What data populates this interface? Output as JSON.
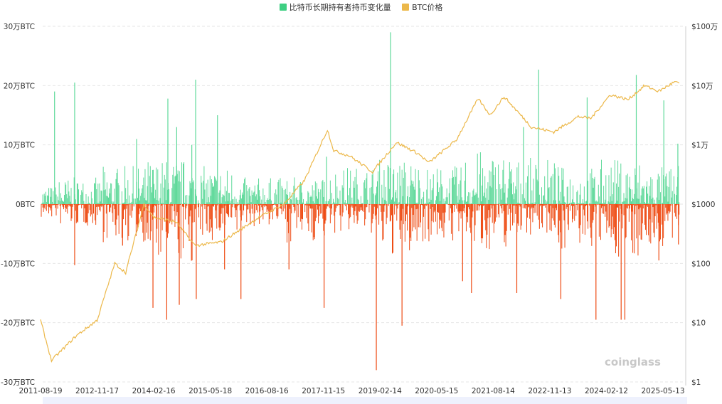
{
  "chart_data": {
    "type": "bar+line",
    "legend": [
      {
        "name": "比特币长期持有者持币变化量",
        "color": "#3ecf82"
      },
      {
        "name": "BTC价格",
        "color": "#ecb84a"
      }
    ],
    "legend_position": "top",
    "left_axis": {
      "ticks": [
        "30万BTC",
        "20万BTC",
        "10万BTC",
        "0BTC",
        "-10万BTC",
        "-20万BTC",
        "-30万BTC"
      ],
      "range_wan_btc": [
        -30,
        30
      ]
    },
    "right_axis": {
      "scale": "log",
      "ticks": [
        "$100万",
        "$10万",
        "$1万",
        "$1000",
        "$100",
        "$10",
        "$1"
      ],
      "range_usd": [
        1,
        1000000
      ]
    },
    "x_ticks": [
      "2011-08-19",
      "2012-11-17",
      "2014-02-16",
      "2015-05-18",
      "2016-08-16",
      "2017-11-15",
      "2019-02-14",
      "2020-05-15",
      "2021-08-14",
      "2022-11-13",
      "2024-02-12",
      "2025-05-13"
    ],
    "grid": true,
    "colors": {
      "positive": "#5fd99a",
      "negative": "#ee4a12",
      "price": "#ecb84a"
    },
    "units": "万BTC",
    "positive_spikes": [
      [
        "2011-12-10",
        19
      ],
      [
        "2012-05-20",
        20.5
      ],
      [
        "2013-10-01",
        11
      ],
      [
        "2014-06-10",
        17.8
      ],
      [
        "2014-08-20",
        13
      ],
      [
        "2014-12-20",
        10
      ],
      [
        "2015-01-20",
        21
      ],
      [
        "2015-07-15",
        15
      ],
      [
        "2017-12-10",
        8
      ],
      [
        "2019-05-10",
        29
      ],
      [
        "2022-04-15",
        13
      ],
      [
        "2022-08-15",
        22.7
      ],
      [
        "2023-09-10",
        18
      ],
      [
        "2024-10-10",
        21.8
      ],
      [
        "2025-05-20",
        17.5
      ],
      [
        "2025-09-10",
        10.2
      ]
    ],
    "negative_spikes": [
      [
        "2012-05-20",
        -10.3
      ],
      [
        "2013-06-10",
        -7
      ],
      [
        "2014-02-10",
        -17.5
      ],
      [
        "2014-06-01",
        -19.5
      ],
      [
        "2014-09-10",
        -17
      ],
      [
        "2015-01-25",
        -16
      ],
      [
        "2015-09-10",
        -11
      ],
      [
        "2016-01-20",
        -16
      ],
      [
        "2017-02-10",
        -11
      ],
      [
        "2017-11-20",
        -17.5
      ],
      [
        "2019-01-15",
        -28
      ],
      [
        "2019-08-10",
        -20.5
      ],
      [
        "2020-12-10",
        -13
      ],
      [
        "2021-02-20",
        -15
      ],
      [
        "2022-02-20",
        -15
      ],
      [
        "2023-02-10",
        -16
      ],
      [
        "2023-11-20",
        -19.5
      ],
      [
        "2024-06-10",
        -19.5
      ],
      [
        "2024-07-10",
        -19.5
      ],
      [
        "2025-04-10",
        -9.5
      ],
      [
        "2025-09-15",
        -6.8
      ]
    ],
    "typical_daily_range_by_year": [
      {
        "year": 2011,
        "pos": 2.5,
        "neg": -2
      },
      {
        "year": 2012,
        "pos": 3.5,
        "neg": -3
      },
      {
        "year": 2013,
        "pos": 5,
        "neg": -5
      },
      {
        "year": 2014,
        "pos": 6,
        "neg": -8
      },
      {
        "year": 2015,
        "pos": 5,
        "neg": -5
      },
      {
        "year": 2016,
        "pos": 3.5,
        "neg": -3
      },
      {
        "year": 2017,
        "pos": 3.5,
        "neg": -5
      },
      {
        "year": 2018,
        "pos": 5,
        "neg": -4
      },
      {
        "year": 2019,
        "pos": 6,
        "neg": -7
      },
      {
        "year": 2020,
        "pos": 5,
        "neg": -5
      },
      {
        "year": 2021,
        "pos": 7,
        "neg": -6
      },
      {
        "year": 2022,
        "pos": 6,
        "neg": -4
      },
      {
        "year": 2023,
        "pos": 5,
        "neg": -6
      },
      {
        "year": 2024,
        "pos": 6,
        "neg": -7
      },
      {
        "year": 2025,
        "pos": 5,
        "neg": -6
      }
    ],
    "price": [
      [
        "2011-08-19",
        11
      ],
      [
        "2011-11-15",
        2.3
      ],
      [
        "2012-06-01",
        6
      ],
      [
        "2012-11-17",
        11
      ],
      [
        "2013-04-08",
        100
      ],
      [
        "2013-07-05",
        70
      ],
      [
        "2013-11-30",
        1000
      ],
      [
        "2014-02-16",
        600
      ],
      [
        "2014-08-15",
        500
      ],
      [
        "2015-01-15",
        200
      ],
      [
        "2015-08-15",
        230
      ],
      [
        "2016-06-15",
        600
      ],
      [
        "2017-01-01",
        1000
      ],
      [
        "2017-06-15",
        2500
      ],
      [
        "2017-12-17",
        18000
      ],
      [
        "2018-02-06",
        8000
      ],
      [
        "2018-06-15",
        6500
      ],
      [
        "2018-12-15",
        3500
      ],
      [
        "2019-06-26",
        11000
      ],
      [
        "2019-12-15",
        7200
      ],
      [
        "2020-03-13",
        5000
      ],
      [
        "2020-10-20",
        12000
      ],
      [
        "2021-04-14",
        60000
      ],
      [
        "2021-07-20",
        32000
      ],
      [
        "2021-11-10",
        65000
      ],
      [
        "2022-06-18",
        20000
      ],
      [
        "2022-12-15",
        16500
      ],
      [
        "2023-06-30",
        30000
      ],
      [
        "2023-10-10",
        28000
      ],
      [
        "2024-03-14",
        70000
      ],
      [
        "2024-08-05",
        58000
      ],
      [
        "2024-12-17",
        100000
      ],
      [
        "2025-04-08",
        80000
      ],
      [
        "2025-08-14",
        115000
      ],
      [
        "2025-09-20",
        110000
      ]
    ]
  },
  "watermark": "coinglass"
}
